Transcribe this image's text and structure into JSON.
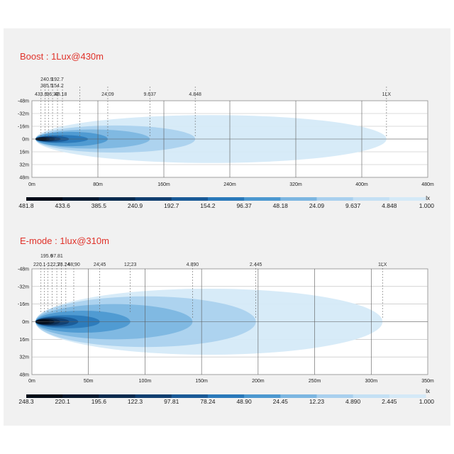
{
  "chart_data": [
    {
      "type": "area",
      "title": "Boost : 1Lux@430m",
      "title_color": "#e0322a",
      "x_ticks": [
        {
          "v": 0,
          "label": "0m"
        },
        {
          "v": 80,
          "label": "80m"
        },
        {
          "v": 160,
          "label": "160m"
        },
        {
          "v": 240,
          "label": "240m"
        },
        {
          "v": 320,
          "label": "320m"
        },
        {
          "v": 400,
          "label": "400m"
        },
        {
          "v": 480,
          "label": "480m"
        }
      ],
      "xlim": [
        0,
        480
      ],
      "y_ticks": [
        {
          "v": -48,
          "label": "-48m"
        },
        {
          "v": -32,
          "label": "-32m"
        },
        {
          "v": -16,
          "label": "-16m"
        },
        {
          "v": 0,
          "label": "0m"
        },
        {
          "v": 16,
          "label": "16m"
        },
        {
          "v": 32,
          "label": "32m"
        },
        {
          "v": 48,
          "label": "48m"
        }
      ],
      "ylim": [
        -48,
        48
      ],
      "contours": [
        {
          "lux": "1LX",
          "reach": 430,
          "half_width": 30,
          "color": "#d4e9f7"
        },
        {
          "lux": "4.848",
          "reach": 198,
          "half_width": 17,
          "color": "#a9d0ee"
        },
        {
          "lux": "9.637",
          "reach": 143,
          "half_width": 12,
          "color": "#7cb6e1"
        },
        {
          "lux": "24.09",
          "reach": 92,
          "half_width": 9,
          "color": "#4c98d0"
        },
        {
          "lux": "48.18",
          "reach": 68,
          "half_width": 5,
          "color": "#2a79ba"
        },
        {
          "lux": "96.37",
          "reach": 45,
          "half_width": 4,
          "color": "#1a5a97"
        },
        {
          "lux": "154.2",
          "reach": 35,
          "half_width": 3,
          "color": "#113f70"
        },
        {
          "lux": "192.7",
          "reach": 28,
          "half_width": 2.5,
          "color": "#0b2b4f"
        },
        {
          "lux": "385.5",
          "reach": 22,
          "half_width": 2,
          "color": "#07192f"
        },
        {
          "lux": "433.6",
          "reach": 18,
          "half_width": 1.5,
          "color": "#030c18"
        }
      ],
      "marker_labels": [
        {
          "text": "433.6",
          "x": 11,
          "row": 3
        },
        {
          "text": "240.9",
          "x": 18,
          "row": 1
        },
        {
          "text": "385.5",
          "x": 18,
          "row": 2
        },
        {
          "text": "96.37",
          "x": 25,
          "row": 3
        },
        {
          "text": "192.7",
          "x": 31,
          "row": 1
        },
        {
          "text": "154.2",
          "x": 31,
          "row": 2
        },
        {
          "text": "48.18",
          "x": 35,
          "row": 3
        },
        {
          "text": "24.09",
          "x": 92,
          "row": 3
        },
        {
          "text": "9.637",
          "x": 143,
          "row": 3
        },
        {
          "text": "4.848",
          "x": 198,
          "row": 3
        },
        {
          "text": "1LX",
          "x": 430,
          "row": 3
        }
      ],
      "marker_ticks": [
        11,
        16,
        20,
        25,
        31,
        37,
        58,
        92,
        143,
        198,
        430
      ],
      "legend": {
        "unit": "lx",
        "values": [
          "481.8",
          "433.6",
          "385.5",
          "240.9",
          "192.7",
          "154.2",
          "96.37",
          "48.18",
          "24.09",
          "9.637",
          "4.848",
          "1.000"
        ],
        "colors": [
          "#030c18",
          "#07192f",
          "#0b2b4f",
          "#113f70",
          "#1a5a97",
          "#2a79ba",
          "#4c98d0",
          "#7cb6e1",
          "#a9d0ee",
          "#c4e0f4",
          "#d4e9f7"
        ]
      }
    },
    {
      "type": "area",
      "title": "E-mode : 1lux@310m",
      "title_color": "#e0322a",
      "x_ticks": [
        {
          "v": 0,
          "label": "0m"
        },
        {
          "v": 50,
          "label": "50m"
        },
        {
          "v": 100,
          "label": "100m"
        },
        {
          "v": 150,
          "label": "150m"
        },
        {
          "v": 200,
          "label": "200m"
        },
        {
          "v": 250,
          "label": "250m"
        },
        {
          "v": 300,
          "label": "300m"
        },
        {
          "v": 350,
          "label": "350m"
        }
      ],
      "xlim": [
        0,
        350
      ],
      "y_ticks": [
        {
          "v": -48,
          "label": "-48m"
        },
        {
          "v": -32,
          "label": "-32m"
        },
        {
          "v": -16,
          "label": "-16m"
        },
        {
          "v": 0,
          "label": "0m"
        },
        {
          "v": 16,
          "label": "16m"
        },
        {
          "v": 32,
          "label": "32m"
        },
        {
          "v": 48,
          "label": "48m"
        }
      ],
      "ylim": [
        -48,
        48
      ],
      "contours": [
        {
          "lux": "1LX",
          "reach": 310,
          "half_width": 30,
          "color": "#d4e9f7"
        },
        {
          "lux": "2.445",
          "reach": 198,
          "half_width": 23,
          "color": "#a9d0ee"
        },
        {
          "lux": "4.890",
          "reach": 142,
          "half_width": 16,
          "color": "#7cb6e1"
        },
        {
          "lux": "12.23",
          "reach": 87,
          "half_width": 10,
          "color": "#4c98d0"
        },
        {
          "lux": "24.45",
          "reach": 60,
          "half_width": 6,
          "color": "#2a79ba"
        },
        {
          "lux": "48.90",
          "reach": 41,
          "half_width": 4.5,
          "color": "#1a5a97"
        },
        {
          "lux": "78.24",
          "reach": 33,
          "half_width": 3.5,
          "color": "#113f70"
        },
        {
          "lux": "97.81",
          "reach": 25,
          "half_width": 3,
          "color": "#0b2b4f"
        },
        {
          "lux": "122.3",
          "reach": 20,
          "half_width": 2.5,
          "color": "#07192f"
        },
        {
          "lux": "195.6",
          "reach": 16,
          "half_width": 2,
          "color": "#030c18"
        }
      ],
      "marker_labels": [
        {
          "text": "195.6",
          "x": 13,
          "row": 2
        },
        {
          "text": "97.81",
          "x": 22,
          "row": 2
        },
        {
          "text": "220.1-122.3",
          "x": 13,
          "row": 3
        },
        {
          "text": "78.24",
          "x": 28,
          "row": 3
        },
        {
          "text": "48.90",
          "x": 37,
          "row": 3
        },
        {
          "text": "24.45",
          "x": 60,
          "row": 3
        },
        {
          "text": "12.23",
          "x": 87,
          "row": 3
        },
        {
          "text": "4.890",
          "x": 142,
          "row": 3
        },
        {
          "text": "2.445",
          "x": 198,
          "row": 3
        },
        {
          "text": "1LX",
          "x": 310,
          "row": 3
        }
      ],
      "marker_ticks": [
        8,
        11,
        14,
        18,
        22,
        26,
        30,
        37,
        60,
        87,
        142,
        198,
        310
      ],
      "legend": {
        "unit": "lx",
        "values": [
          "248.3",
          "220.1",
          "195.6",
          "122.3",
          "97.81",
          "78.24",
          "48.90",
          "24.45",
          "12.23",
          "4.890",
          "2.445",
          "1.000"
        ],
        "colors": [
          "#030c18",
          "#07192f",
          "#0b2b4f",
          "#113f70",
          "#1a5a97",
          "#2a79ba",
          "#4c98d0",
          "#7cb6e1",
          "#a9d0ee",
          "#c4e0f4",
          "#d4e9f7"
        ]
      }
    }
  ]
}
